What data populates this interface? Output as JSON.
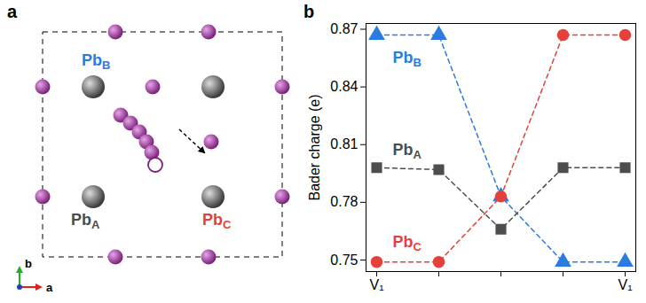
{
  "panels": [
    "a",
    "b"
  ],
  "diagram": {
    "site_labels": [
      "PbB",
      "PbA",
      "PbC"
    ],
    "axis_labels": [
      "a",
      "b"
    ]
  },
  "chart_data": {
    "type": "line",
    "y_label": "Bader charge (e)",
    "categories": [
      "V₁",
      null,
      null,
      null,
      "V₁"
    ],
    "series": [
      {
        "name": "PbB",
        "color": "#2b7be0",
        "marker": "triangle",
        "line_style": "dashed",
        "values": [
          0.867,
          0.867,
          0.783,
          0.749,
          0.749
        ]
      },
      {
        "name": "PbA",
        "color": "#4d4d4d",
        "marker": "square",
        "line_style": "dashed",
        "values": [
          0.798,
          0.797,
          0.766,
          0.798,
          0.798
        ]
      },
      {
        "name": "PbC",
        "color": "#e5413b",
        "marker": "circle",
        "line_style": "dashed",
        "values": [
          0.749,
          0.749,
          0.783,
          0.867,
          0.867
        ]
      }
    ],
    "ylim": [
      0.744,
      0.873
    ],
    "yticks": [
      0.75,
      0.78,
      0.81,
      0.84,
      0.87
    ]
  }
}
